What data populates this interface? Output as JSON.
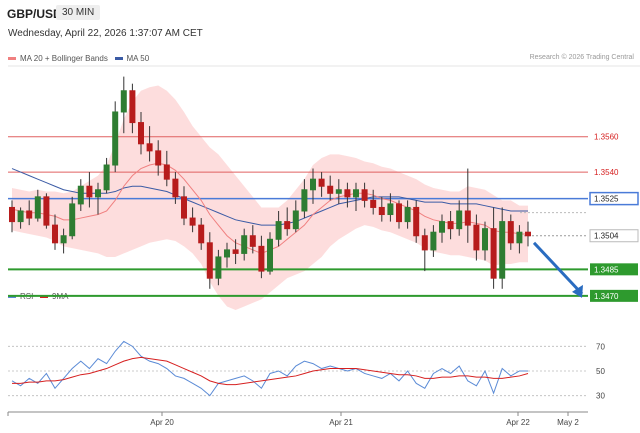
{
  "header": {
    "symbol": "GBP/USD",
    "timeframe": "30 MIN",
    "datetime": "Wednesday, April 22, 2026 1:37:07 AM CET"
  },
  "legend": {
    "ma20_label": "MA 20 + Bollinger Bands",
    "ma20_color": "#f08080",
    "ma50_label": "MA 50",
    "ma50_color": "#3b5ba5"
  },
  "source": "Research © 2026 Trading Central",
  "rsi_legend": {
    "rsi_label": "RSI",
    "rsi_color": "#5b8bd6",
    "ma_label": "9MA",
    "ma_color": "#d62020"
  },
  "colors": {
    "bull": "#2e7d32",
    "bear": "#b71c1c",
    "band": "#fcd5d5",
    "resistance": "#e06060",
    "support": "#2e9a2e",
    "pivot": "#4a7bd8",
    "arrow": "#2a6cc0"
  },
  "chart_data": {
    "type": "candlestick",
    "price_range": [
      1.3462,
      1.36
    ],
    "levels": [
      {
        "value": "1.3560",
        "kind": "resistance"
      },
      {
        "value": "1.3540",
        "kind": "resistance"
      },
      {
        "value": "1.3525",
        "kind": "pivot"
      },
      {
        "value": "1.3504",
        "kind": "last"
      },
      {
        "value": "1.3485",
        "kind": "support"
      },
      {
        "value": "1.3470",
        "kind": "support"
      }
    ],
    "x_ticks": [
      "Apr 20",
      "Apr 21",
      "Apr 22",
      "May 2"
    ],
    "candles": [
      [
        1.352,
        1.3524,
        1.3506,
        1.3512
      ],
      [
        1.3512,
        1.352,
        1.3508,
        1.3518
      ],
      [
        1.3518,
        1.3524,
        1.351,
        1.3514
      ],
      [
        1.3514,
        1.353,
        1.3512,
        1.3526
      ],
      [
        1.3526,
        1.3528,
        1.3508,
        1.351
      ],
      [
        1.351,
        1.3516,
        1.3496,
        1.35
      ],
      [
        1.35,
        1.3508,
        1.3494,
        1.3504
      ],
      [
        1.3504,
        1.3526,
        1.3502,
        1.3522
      ],
      [
        1.3522,
        1.3536,
        1.3518,
        1.3532
      ],
      [
        1.3532,
        1.354,
        1.352,
        1.3526
      ],
      [
        1.3526,
        1.3534,
        1.3516,
        1.353
      ],
      [
        1.353,
        1.3548,
        1.3528,
        1.3544
      ],
      [
        1.3544,
        1.358,
        1.354,
        1.3574
      ],
      [
        1.3574,
        1.3594,
        1.3562,
        1.3586
      ],
      [
        1.3586,
        1.359,
        1.3562,
        1.3568
      ],
      [
        1.3568,
        1.3574,
        1.355,
        1.3556
      ],
      [
        1.3556,
        1.3566,
        1.3546,
        1.3552
      ],
      [
        1.3552,
        1.3558,
        1.3538,
        1.3544
      ],
      [
        1.3544,
        1.3552,
        1.3532,
        1.3536
      ],
      [
        1.3536,
        1.354,
        1.3522,
        1.3526
      ],
      [
        1.3526,
        1.3532,
        1.351,
        1.3514
      ],
      [
        1.3514,
        1.352,
        1.3506,
        1.351
      ],
      [
        1.351,
        1.3514,
        1.3496,
        1.35
      ],
      [
        1.35,
        1.3506,
        1.3474,
        1.348
      ],
      [
        1.348,
        1.3496,
        1.3476,
        1.3492
      ],
      [
        1.3492,
        1.35,
        1.3486,
        1.3496
      ],
      [
        1.3496,
        1.3502,
        1.3488,
        1.3494
      ],
      [
        1.3494,
        1.3508,
        1.349,
        1.3504
      ],
      [
        1.3504,
        1.351,
        1.3494,
        1.3498
      ],
      [
        1.3498,
        1.3504,
        1.348,
        1.3484
      ],
      [
        1.3484,
        1.3506,
        1.3482,
        1.3502
      ],
      [
        1.3502,
        1.3518,
        1.3498,
        1.3512
      ],
      [
        1.3512,
        1.352,
        1.3504,
        1.3508
      ],
      [
        1.3508,
        1.3524,
        1.3506,
        1.3518
      ],
      [
        1.3518,
        1.3536,
        1.3514,
        1.353
      ],
      [
        1.353,
        1.3542,
        1.3522,
        1.3536
      ],
      [
        1.3536,
        1.354,
        1.3526,
        1.3532
      ],
      [
        1.3532,
        1.3538,
        1.3524,
        1.3528
      ],
      [
        1.3528,
        1.3536,
        1.3522,
        1.353
      ],
      [
        1.353,
        1.3534,
        1.352,
        1.3526
      ],
      [
        1.3526,
        1.3534,
        1.3518,
        1.353
      ],
      [
        1.353,
        1.3534,
        1.352,
        1.3524
      ],
      [
        1.3524,
        1.353,
        1.3516,
        1.352
      ],
      [
        1.352,
        1.3526,
        1.3512,
        1.3516
      ],
      [
        1.3516,
        1.3528,
        1.3512,
        1.3522
      ],
      [
        1.3522,
        1.3524,
        1.3508,
        1.3512
      ],
      [
        1.3512,
        1.3524,
        1.3508,
        1.352
      ],
      [
        1.352,
        1.3524,
        1.35,
        1.3504
      ],
      [
        1.3504,
        1.3508,
        1.3484,
        1.3496
      ],
      [
        1.3496,
        1.351,
        1.3492,
        1.3506
      ],
      [
        1.3506,
        1.3516,
        1.35,
        1.3512
      ],
      [
        1.3512,
        1.3518,
        1.3502,
        1.3508
      ],
      [
        1.3508,
        1.3524,
        1.3504,
        1.3518
      ],
      [
        1.3518,
        1.3542,
        1.35,
        1.351
      ],
      [
        1.351,
        1.3516,
        1.349,
        1.3496
      ],
      [
        1.3496,
        1.3512,
        1.349,
        1.3508
      ],
      [
        1.3508,
        1.352,
        1.3474,
        1.348
      ],
      [
        1.348,
        1.352,
        1.3474,
        1.3512
      ],
      [
        1.3512,
        1.3516,
        1.3496,
        1.35
      ],
      [
        1.35,
        1.351,
        1.3494,
        1.3506
      ],
      [
        1.3506,
        1.3512,
        1.3498,
        1.3504
      ]
    ],
    "ma20": [
      1.3519,
      1.3518,
      1.3517,
      1.3517,
      1.3516,
      1.3515,
      1.3513,
      1.3513,
      1.3514,
      1.3515,
      1.3516,
      1.3518,
      1.3524,
      1.3532,
      1.3538,
      1.3542,
      1.3544,
      1.3545,
      1.3544,
      1.3541,
      1.3536,
      1.353,
      1.3524,
      1.3516,
      1.351,
      1.3504,
      1.35,
      1.3498,
      1.3496,
      1.3494,
      1.3496,
      1.3498,
      1.3502,
      1.3506,
      1.351,
      1.3516,
      1.352,
      1.3524,
      1.3526,
      1.3527,
      1.3528,
      1.3528,
      1.3527,
      1.3525,
      1.3524,
      1.3522,
      1.352,
      1.3518,
      1.3515,
      1.3513,
      1.3512,
      1.3511,
      1.3511,
      1.3512,
      1.3511,
      1.351,
      1.3507,
      1.3506,
      1.3506,
      1.3505,
      1.3505
    ],
    "ma50": [
      1.3542,
      1.354,
      1.3538,
      1.3536,
      1.3534,
      1.3532,
      1.353,
      1.3529,
      1.3528,
      1.3528,
      1.3528,
      1.3528,
      1.3529,
      1.3531,
      1.3532,
      1.3532,
      1.3531,
      1.353,
      1.3529,
      1.3527,
      1.3525,
      1.3523,
      1.3521,
      1.3519,
      1.3517,
      1.3515,
      1.3513,
      1.3512,
      1.3511,
      1.351,
      1.351,
      1.351,
      1.3511,
      1.3512,
      1.3514,
      1.3516,
      1.3518,
      1.352,
      1.3522,
      1.3523,
      1.3524,
      1.3525,
      1.3526,
      1.3526,
      1.3526,
      1.3526,
      1.3525,
      1.3524,
      1.3523,
      1.3523,
      1.3523,
      1.3522,
      1.3522,
      1.3522,
      1.3522,
      1.3521,
      1.352,
      1.3519,
      1.3518,
      1.3518,
      1.3518
    ],
    "bb_width": [
      0.0012,
      0.0012,
      0.0012,
      0.0013,
      0.0013,
      0.0014,
      0.0015,
      0.0016,
      0.0018,
      0.002,
      0.0022,
      0.0026,
      0.0032,
      0.0038,
      0.0042,
      0.0044,
      0.0044,
      0.0044,
      0.0042,
      0.004,
      0.0038,
      0.0036,
      0.0036,
      0.0038,
      0.004,
      0.004,
      0.0038,
      0.0034,
      0.003,
      0.0026,
      0.0024,
      0.0022,
      0.0022,
      0.0024,
      0.0026,
      0.0028,
      0.0028,
      0.0026,
      0.0024,
      0.0022,
      0.002,
      0.0018,
      0.0018,
      0.0018,
      0.0018,
      0.0018,
      0.0018,
      0.0018,
      0.0018,
      0.0018,
      0.0018,
      0.0018,
      0.0018,
      0.002,
      0.002,
      0.002,
      0.002,
      0.0018,
      0.0018,
      0.0016,
      0.0016
    ],
    "rsi": {
      "ticks": [
        "70",
        "50",
        "30"
      ],
      "range": [
        20,
        80
      ],
      "rsi": [
        42,
        38,
        44,
        40,
        48,
        36,
        44,
        52,
        58,
        52,
        60,
        56,
        66,
        74,
        70,
        62,
        58,
        56,
        52,
        46,
        44,
        40,
        36,
        30,
        40,
        42,
        44,
        46,
        42,
        36,
        48,
        50,
        46,
        54,
        58,
        56,
        52,
        54,
        52,
        50,
        52,
        48,
        46,
        44,
        48,
        42,
        50,
        40,
        36,
        48,
        52,
        48,
        54,
        42,
        38,
        50,
        32,
        52,
        46,
        50,
        50
      ],
      "ma": [
        40,
        40,
        41,
        41,
        42,
        42,
        43,
        45,
        47,
        48,
        50,
        52,
        55,
        58,
        60,
        61,
        60,
        59,
        58,
        55,
        52,
        49,
        46,
        42,
        40,
        39,
        39,
        40,
        41,
        42,
        43,
        44,
        45,
        46,
        48,
        50,
        51,
        52,
        52,
        52,
        52,
        51,
        50,
        49,
        48,
        47,
        47,
        46,
        44,
        44,
        45,
        45,
        46,
        46,
        45,
        45,
        44,
        44,
        45,
        46,
        48
      ]
    }
  }
}
